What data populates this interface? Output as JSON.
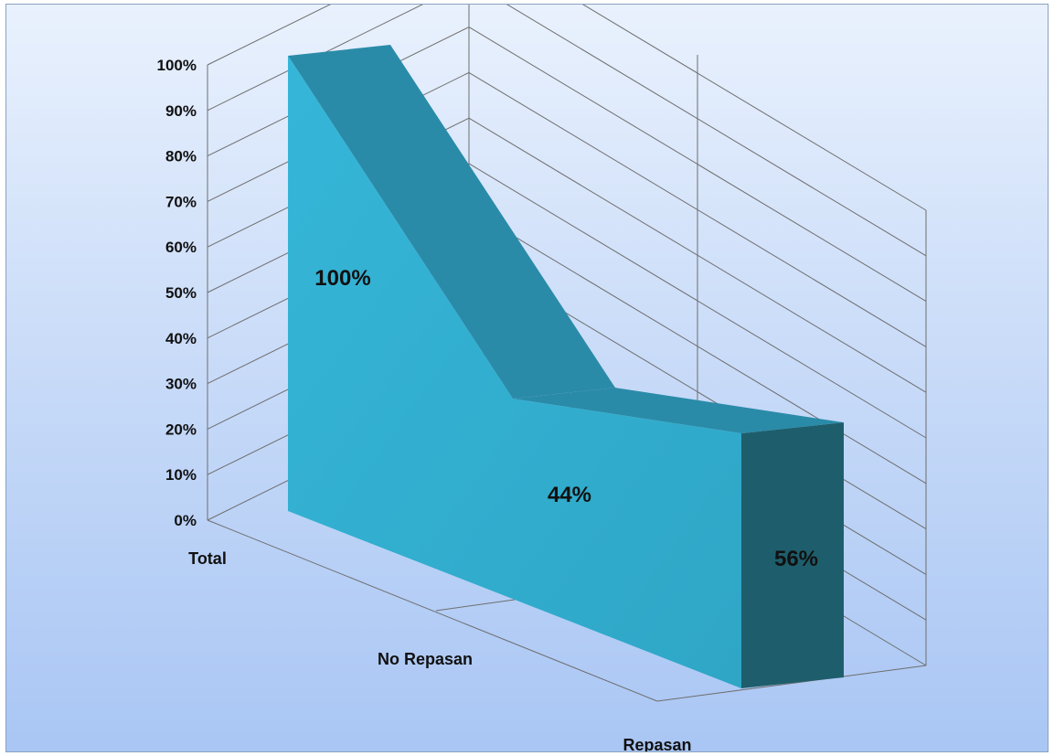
{
  "chart_data": {
    "type": "area",
    "style": "3d",
    "categories": [
      "Total",
      "No Repasan",
      "Repasan"
    ],
    "values": [
      100,
      44,
      56
    ],
    "data_labels": [
      "100%",
      "44%",
      "56%"
    ],
    "y_ticks": [
      "0%",
      "10%",
      "20%",
      "30%",
      "40%",
      "50%",
      "60%",
      "70%",
      "80%",
      "90%",
      "100%"
    ],
    "ylim": [
      0,
      100
    ],
    "grid": true,
    "legend": "none",
    "colors": {
      "front": "#2fa6c6",
      "front_light": "#35b6d8",
      "top": "#2a8ba8",
      "side": "#1e5e6c",
      "grid": "#6e6e6e",
      "background_top": "#e9f1fd",
      "background_bottom": "#a9c6f4"
    }
  }
}
